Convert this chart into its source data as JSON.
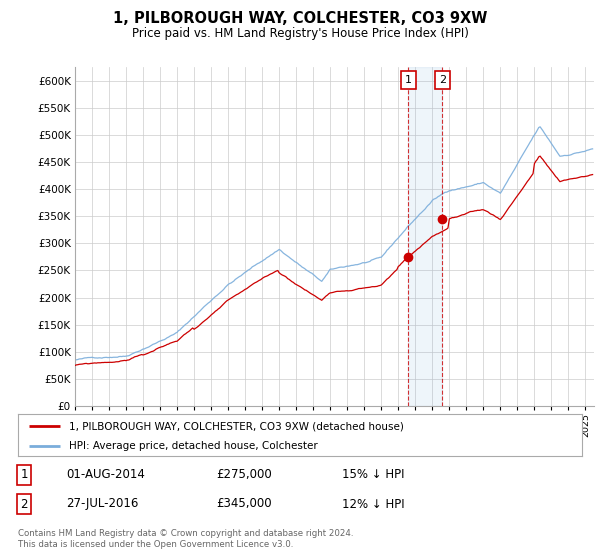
{
  "title": "1, PILBOROUGH WAY, COLCHESTER, CO3 9XW",
  "subtitle": "Price paid vs. HM Land Registry's House Price Index (HPI)",
  "hpi_color": "#7aaddb",
  "property_color": "#cc0000",
  "transaction1_date": 2014.58,
  "transaction1_price": 275000,
  "transaction1_label": "1",
  "transaction2_date": 2016.58,
  "transaction2_price": 345000,
  "transaction2_label": "2",
  "legend_property": "1, PILBOROUGH WAY, COLCHESTER, CO3 9XW (detached house)",
  "legend_hpi": "HPI: Average price, detached house, Colchester",
  "table_row1": [
    "1",
    "01-AUG-2014",
    "£275,000",
    "15% ↓ HPI"
  ],
  "table_row2": [
    "2",
    "27-JUL-2016",
    "£345,000",
    "12% ↓ HPI"
  ],
  "footnote": "Contains HM Land Registry data © Crown copyright and database right 2024.\nThis data is licensed under the Open Government Licence v3.0.",
  "background_color": "#ffffff",
  "grid_color": "#cccccc",
  "ylim": [
    0,
    625000
  ],
  "yticks": [
    0,
    50000,
    100000,
    150000,
    200000,
    250000,
    300000,
    350000,
    400000,
    450000,
    500000,
    550000,
    600000
  ],
  "xlim_start": 1995,
  "xlim_end": 2025.5
}
